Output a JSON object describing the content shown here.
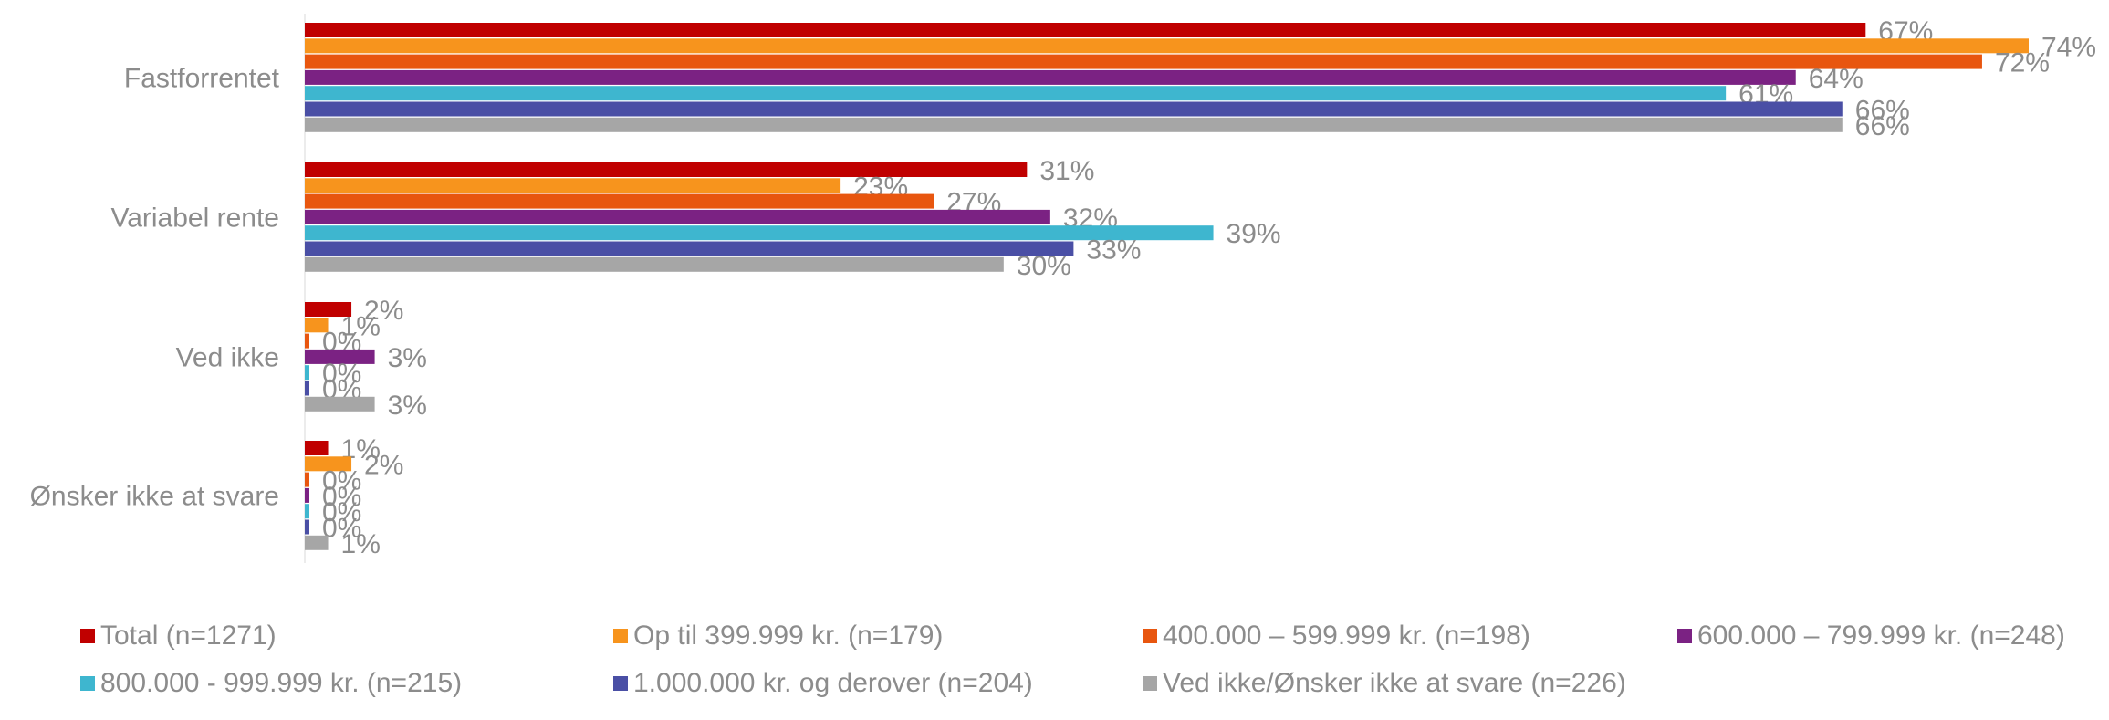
{
  "chart_data": {
    "type": "bar",
    "orientation": "horizontal",
    "categories": [
      "Fastforrentet",
      "Variabel rente",
      "Ved ikke",
      "Ønsker ikke at svare"
    ],
    "series": [
      {
        "name": "Total (n=1271)",
        "color": "#C00000",
        "values": [
          67,
          31,
          2,
          1
        ],
        "labels": [
          "67%",
          "31%",
          "2%",
          "1%"
        ]
      },
      {
        "name": "Op til 399.999 kr. (n=179)",
        "color": "#F7941D",
        "values": [
          74,
          23,
          1,
          2
        ],
        "labels": [
          "74%",
          "23%",
          "1%",
          "2%"
        ]
      },
      {
        "name": "400.000 – 599.999 kr. (n=198)",
        "color": "#E8560F",
        "values": [
          72,
          27,
          0,
          0
        ],
        "labels": [
          "72%",
          "27%",
          "0%",
          "0%"
        ]
      },
      {
        "name": "600.000 – 799.999 kr. (n=248)",
        "color": "#7B2283",
        "values": [
          64,
          32,
          3,
          0
        ],
        "labels": [
          "64%",
          "32%",
          "3%",
          "0%"
        ]
      },
      {
        "name": "800.000 - 999.999 kr. (n=215)",
        "color": "#3EB6CF",
        "values": [
          61,
          39,
          0,
          0
        ],
        "labels": [
          "61%",
          "39%",
          "0%",
          "0%"
        ]
      },
      {
        "name": "1.000.000 kr. og derover (n=204)",
        "color": "#4A4FA5",
        "values": [
          66,
          33,
          0,
          0
        ],
        "labels": [
          "66%",
          "33%",
          "0%",
          "0%"
        ]
      },
      {
        "name": "Ved ikke/Ønsker ikke at svare (n=226)",
        "color": "#A6A6A6",
        "values": [
          66,
          30,
          3,
          1
        ],
        "labels": [
          "66%",
          "30%",
          "3%",
          "1%"
        ]
      }
    ],
    "xlim": [
      0,
      75
    ],
    "grid": false,
    "legend_position": "bottom"
  }
}
